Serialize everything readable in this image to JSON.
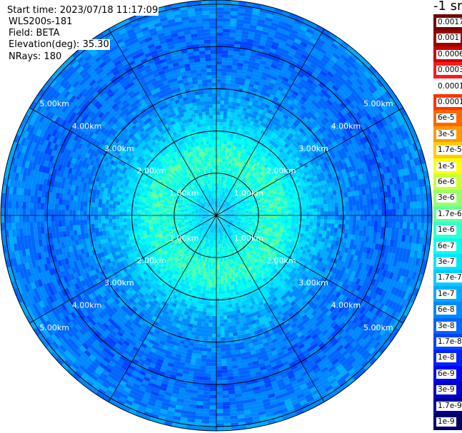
{
  "header": {
    "start_time": "Start time: 2023/07/18 11:17:09",
    "instrument": "WLS200s-181",
    "field": "Field: BETA",
    "elevation_label": "Elevation(deg):",
    "elevation_value": "35.30",
    "nrays": "NRays: 180"
  },
  "legend": {
    "unit_label": "-1 sr",
    "ticks": [
      "0.0017",
      "0.001",
      "0.0006",
      "0.0003",
      "0.00017",
      "0.0001",
      "6e-5",
      "3e-5",
      "1.7e-5",
      "1e-5",
      "6e-6",
      "3e-6",
      "1.7e-6",
      "1e-6",
      "6e-7",
      "3e-7",
      "1.7e-7",
      "1e-7",
      "6e-8",
      "3e-8",
      "1.7e-8",
      "1e-8",
      "6e-9",
      "3e-9",
      "1.7e-9",
      "1e-9"
    ],
    "colors": [
      "#6f0000",
      "#990000",
      "#cc0000",
      "#ff1a1a",
      "#ffffff",
      "#ff3300",
      "#ff6600",
      "#ff9900",
      "#ffcc00",
      "#ffff00",
      "#ccff33",
      "#99ff66",
      "#66ff99",
      "#33ffcc",
      "#00ffee",
      "#00e5ff",
      "#00ccff",
      "#00aaff",
      "#0088ff",
      "#0066ff",
      "#0044ff",
      "#0022ff",
      "#0000ff",
      "#0000cc",
      "#00009a",
      "#000066"
    ]
  },
  "chart_data": {
    "type": "heatmap",
    "subtype": "polar-ppi",
    "range_ring_labels": [
      "1.00km",
      "2.00km",
      "3.00km",
      "4.00km",
      "5.00km"
    ],
    "range_rings_km": [
      1,
      2,
      3,
      4,
      5
    ],
    "max_range_km": 5.1,
    "azimuth_spokes_deg": [
      0,
      30,
      60,
      90,
      120,
      150,
      180,
      210,
      240,
      270,
      300,
      330
    ],
    "field": "BETA",
    "nrays": 180,
    "radial_profile": [
      {
        "range_km": 0.0,
        "value": "3e-7"
      },
      {
        "range_km": 0.3,
        "value": "1.7e-7"
      },
      {
        "range_km": 0.8,
        "value": "6e-7"
      },
      {
        "range_km": 1.5,
        "value": "1e-6"
      },
      {
        "range_km": 2.0,
        "value": "3e-7"
      },
      {
        "range_km": 2.5,
        "value": "1e-7"
      },
      {
        "range_km": 3.0,
        "value": "6e-8"
      },
      {
        "range_km": 4.0,
        "value": "3e-8"
      },
      {
        "range_km": 5.0,
        "value": "6e-8"
      }
    ]
  }
}
